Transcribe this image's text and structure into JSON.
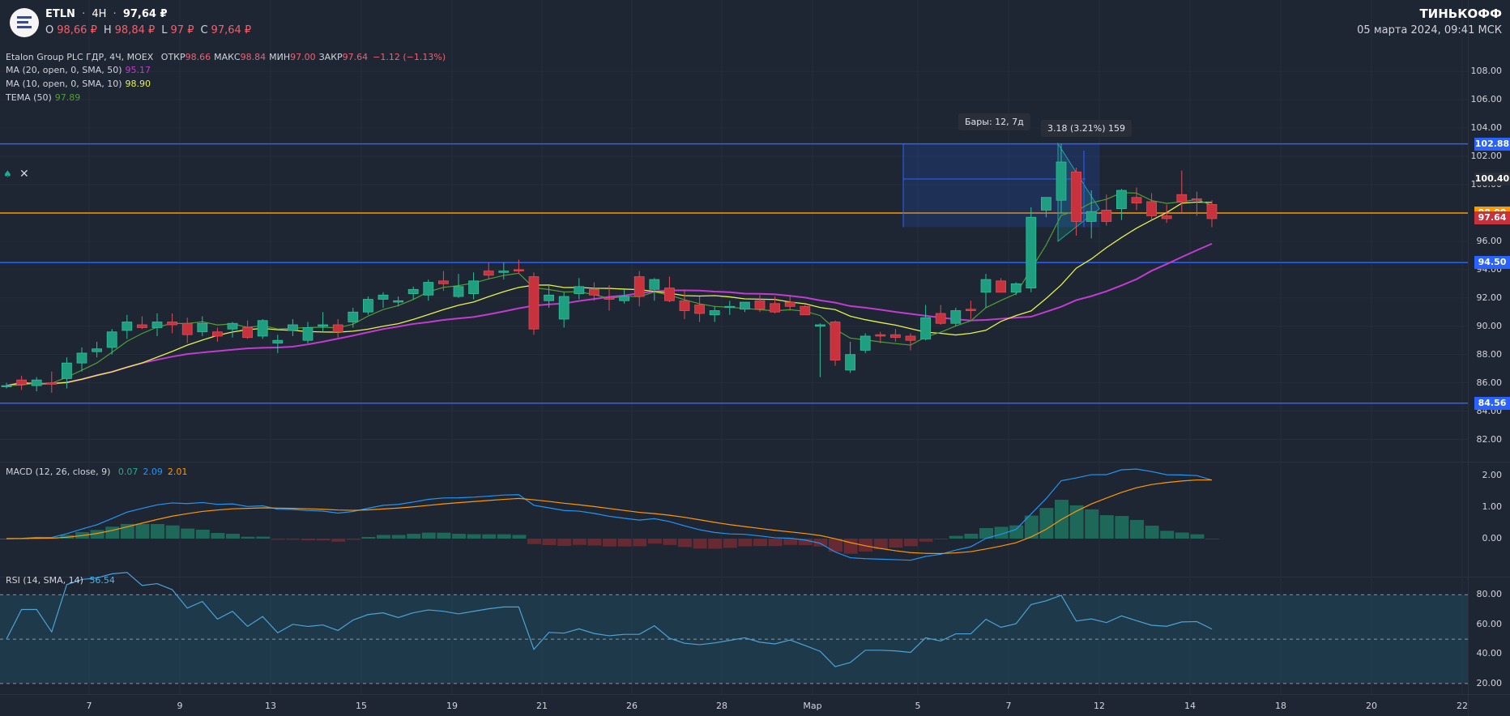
{
  "header": {
    "ticker": "ETLN",
    "timeframe": "4H",
    "price": "97,64 ₽",
    "ohlc": [
      {
        "key": "O",
        "value": "98,66 ₽"
      },
      {
        "key": "H",
        "value": "98,84 ₽"
      },
      {
        "key": "L",
        "value": "97 ₽"
      },
      {
        "key": "C",
        "value": "97,64 ₽"
      }
    ],
    "brand": "ТИНЬКОФФ",
    "datetime": "05 марта 2024, 09:41 МСК"
  },
  "legend": {
    "instrument": "Etalon Group PLC ГДР, 4Ч, MOEX",
    "stats": [
      {
        "key": "ОТКР",
        "value": "98.66"
      },
      {
        "key": "МАКС",
        "value": "98.84"
      },
      {
        "key": "МИН",
        "value": "97.00"
      },
      {
        "key": "ЗАКР",
        "value": "97.64"
      }
    ],
    "change": "−1.12 (−1.13%)",
    "indicators": [
      {
        "label": "MA (20, open, 0, SMA, 50)",
        "value": "95.17",
        "color": "#c13ccf"
      },
      {
        "label": "MA (10, open, 0, SMA, 10)",
        "value": "98.90",
        "color": "#e6f24a"
      },
      {
        "label": "TEMA (50)",
        "value": "97.89",
        "color": "#4f9f34"
      }
    ],
    "alert_icon": "bell-icon",
    "close_icon": "close-icon"
  },
  "price_axis": {
    "ticks": [
      "108.00",
      "106.00",
      "104.00",
      "102.00",
      "100.00",
      "98.00",
      "96.00",
      "94.00",
      "92.00",
      "90.00",
      "88.00",
      "86.00",
      "84.00",
      "82.00"
    ],
    "labels": [
      {
        "text": "102.88",
        "bg": "#2962ff",
        "fg": "#ffffff"
      },
      {
        "text": "100.40",
        "bg": "#2a2e39",
        "fg": "#ffffff"
      },
      {
        "text": "98.00",
        "bg": "#ff9800",
        "fg": "#ffffff"
      },
      {
        "text": "97.64",
        "bg": "#c8323c",
        "fg": "#ffffff"
      },
      {
        "text": "94.50",
        "bg": "#2962ff",
        "fg": "#ffffff"
      },
      {
        "text": "84.56",
        "bg": "#2962ff",
        "fg": "#ffffff"
      }
    ]
  },
  "drawings": {
    "bars_tooltip": "Бары: 12, 7д",
    "range_tooltip": "3.18 (3.21%) 159",
    "horizontal_levels": [
      102.88,
      94.5,
      84.56
    ],
    "orange_level": 98.0
  },
  "macd": {
    "label": "MACD (12, 26, close, 9)",
    "values": [
      {
        "v": "0.07",
        "color": "#22ab94"
      },
      {
        "v": "2.09",
        "color": "#2196f3"
      },
      {
        "v": "2.01",
        "color": "#ff9800"
      }
    ],
    "ticks": [
      "2.00",
      "1.00",
      "0.00"
    ]
  },
  "rsi": {
    "label": "RSI (14, SMA, 14)",
    "value": "56.54",
    "ticks": [
      "80.00",
      "60.00",
      "40.00",
      "20.00"
    ]
  },
  "time_axis": [
    "7",
    "9",
    "13",
    "15",
    "19",
    "21",
    "26",
    "28",
    "Мар",
    "5",
    "7",
    "12",
    "14",
    "18",
    "20",
    "22"
  ],
  "chart_data": {
    "type": "candlestick",
    "y_range": [
      81,
      109.5
    ],
    "candles": [
      [
        85.8,
        86,
        85.6,
        85.8
      ],
      [
        86.2,
        86.5,
        85.5,
        85.9
      ],
      [
        85.8,
        86.4,
        85.4,
        86.2
      ],
      [
        86,
        86.8,
        85.3,
        85.9
      ],
      [
        86.3,
        87.8,
        85.6,
        87.4
      ],
      [
        87.4,
        88.5,
        86.8,
        88.1
      ],
      [
        88.2,
        88.9,
        87.8,
        88.4
      ],
      [
        88.5,
        89.8,
        88,
        89.6
      ],
      [
        89.7,
        90.8,
        89.1,
        90.3
      ],
      [
        90.1,
        90.7,
        89.8,
        89.9
      ],
      [
        89.9,
        90.9,
        89.3,
        90.3
      ],
      [
        90.3,
        90.9,
        89.5,
        90.1
      ],
      [
        90.2,
        90.6,
        88.8,
        89.4
      ],
      [
        89.6,
        90.7,
        89.3,
        90.2
      ],
      [
        89.6,
        89.9,
        88.9,
        89.3
      ],
      [
        89.8,
        90.3,
        89.2,
        90.2
      ],
      [
        89.9,
        90.4,
        89.1,
        89.2
      ],
      [
        89.3,
        90.5,
        89.1,
        90.4
      ],
      [
        88.8,
        89.4,
        88.1,
        89
      ],
      [
        89.7,
        90.5,
        89.3,
        90.1
      ],
      [
        89,
        90.3,
        88.8,
        89.9
      ],
      [
        90,
        91,
        89.6,
        90.1
      ],
      [
        90.1,
        90.5,
        89.2,
        89.6
      ],
      [
        90.3,
        91.3,
        89.9,
        91
      ],
      [
        91,
        92.1,
        90.8,
        91.9
      ],
      [
        91.9,
        92.4,
        91.3,
        92.2
      ],
      [
        91.7,
        92.1,
        91.4,
        91.8
      ],
      [
        92.3,
        92.8,
        91.9,
        92.6
      ],
      [
        92.2,
        93.3,
        91.8,
        93.1
      ],
      [
        93.2,
        93.9,
        92.5,
        93
      ],
      [
        92.1,
        93.7,
        92,
        92.8
      ],
      [
        92.3,
        93.8,
        91.9,
        93.2
      ],
      [
        93.9,
        94.5,
        93.3,
        93.6
      ],
      [
        93.8,
        94.5,
        93.3,
        93.9
      ],
      [
        94,
        94.7,
        93.7,
        93.9
      ],
      [
        93.5,
        93.8,
        89.4,
        89.8
      ],
      [
        91.8,
        92.9,
        91.3,
        92.2
      ],
      [
        90.5,
        92.4,
        89.9,
        92.1
      ],
      [
        92.3,
        93.4,
        91.9,
        92.8
      ],
      [
        92.6,
        93.1,
        91.8,
        92.2
      ],
      [
        92,
        92.9,
        91.1,
        91.9
      ],
      [
        91.8,
        92.6,
        91.6,
        92.1
      ],
      [
        93.5,
        93.9,
        91.4,
        92.1
      ],
      [
        92.6,
        93.4,
        91.8,
        93.3
      ],
      [
        92.7,
        93.5,
        91.7,
        91.8
      ],
      [
        91.8,
        92.6,
        90.5,
        91.1
      ],
      [
        91.5,
        92.1,
        90.3,
        90.9
      ],
      [
        90.8,
        91.4,
        90.3,
        91.1
      ],
      [
        91.4,
        91.8,
        90.8,
        91.4
      ],
      [
        91.2,
        91.6,
        91,
        91.7
      ],
      [
        91.8,
        92.2,
        91,
        91.2
      ],
      [
        91.6,
        92.1,
        90.9,
        91
      ],
      [
        91.7,
        92.2,
        91.1,
        91.4
      ],
      [
        91.4,
        91.5,
        90.9,
        90.8
      ],
      [
        90,
        90.2,
        86.4,
        90.1
      ],
      [
        90.3,
        90.4,
        87.2,
        87.6
      ],
      [
        86.9,
        88.9,
        86.7,
        88
      ],
      [
        88.3,
        89.5,
        88.1,
        89.3
      ],
      [
        89.4,
        89.6,
        88.8,
        89.3
      ],
      [
        89.4,
        89.8,
        88.9,
        89.2
      ],
      [
        89.3,
        89.5,
        88.3,
        89
      ],
      [
        89.1,
        91.5,
        89,
        90.6
      ],
      [
        90.9,
        91.5,
        90.1,
        90.2
      ],
      [
        90.2,
        91.3,
        90,
        91.1
      ],
      [
        91.2,
        91.8,
        90.5,
        91.1
      ],
      [
        92.4,
        93.7,
        91.3,
        93.3
      ],
      [
        93.2,
        93.4,
        92.5,
        92.4
      ],
      [
        92.4,
        93.1,
        92.2,
        93
      ],
      [
        92.7,
        98.4,
        92.4,
        97.7
      ],
      [
        98.2,
        99,
        97.7,
        99.1
      ],
      [
        98.9,
        102.9,
        98,
        101.6
      ],
      [
        100.9,
        101.2,
        96.4,
        97.4
      ],
      [
        97.4,
        99.6,
        96.2,
        98.1
      ],
      [
        98.2,
        99.3,
        97.1,
        97.4
      ],
      [
        98.3,
        99.7,
        97.5,
        99.6
      ],
      [
        99.1,
        99.8,
        98.2,
        98.7
      ],
      [
        98.8,
        99.4,
        97.5,
        97.8
      ],
      [
        97.8,
        98.6,
        97.3,
        97.6
      ],
      [
        99.3,
        101,
        98,
        98.8
      ],
      [
        99,
        99.5,
        97.8,
        98.9
      ],
      [
        98.6,
        98.9,
        97,
        97.6
      ]
    ]
  }
}
